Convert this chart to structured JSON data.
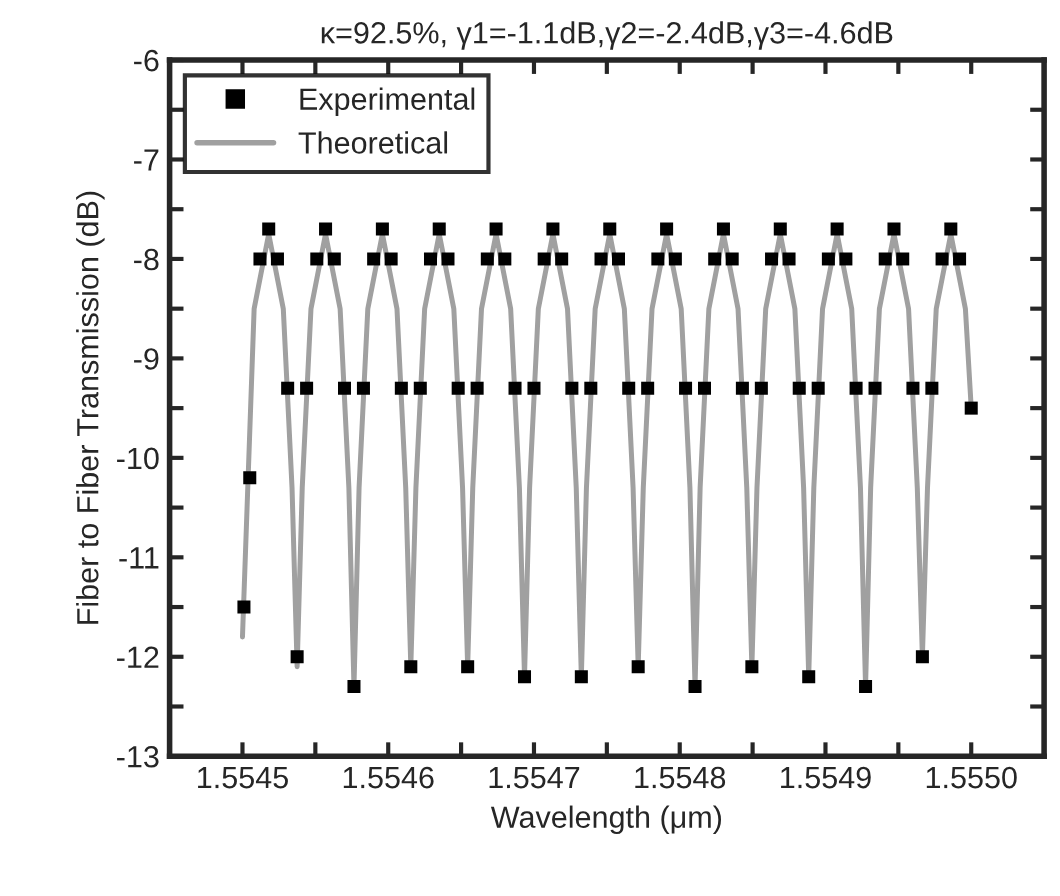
{
  "chart_data": {
    "type": "line",
    "title": "κ=92.5%, γ1=-1.1dB,γ2=-2.4dB,γ3=-4.6dB",
    "xlabel": "Wavelength (μm)",
    "ylabel": "Fiber to Fiber Transmission (dB)",
    "series": [
      {
        "name": "Experimental",
        "type": "scatter",
        "marker": "square",
        "color": "#000000",
        "x": [
          1.554501,
          1.554505,
          1.554512,
          1.554518,
          1.554524,
          1.554531,
          1.5545375,
          1.554544,
          1.554551,
          1.554557,
          1.554563,
          1.55457,
          1.5545765,
          1.554583,
          1.55459,
          1.554596,
          1.554602,
          1.554609,
          1.5546155,
          1.554622,
          1.554629,
          1.554635,
          1.554641,
          1.554648,
          1.5546545,
          1.554661,
          1.554668,
          1.554674,
          1.55468,
          1.554687,
          1.5546935,
          1.5547,
          1.554707,
          1.554713,
          1.554719,
          1.554726,
          1.5547325,
          1.554739,
          1.554746,
          1.554752,
          1.554758,
          1.554765,
          1.5547715,
          1.554778,
          1.554785,
          1.554791,
          1.554797,
          1.554804,
          1.5548105,
          1.554817,
          1.554824,
          1.55483,
          1.554836,
          1.554843,
          1.5548495,
          1.554856,
          1.554863,
          1.554869,
          1.554875,
          1.554882,
          1.5548885,
          1.554895,
          1.554902,
          1.554908,
          1.554914,
          1.554921,
          1.5549275,
          1.554934,
          1.554941,
          1.554947,
          1.554953,
          1.55496,
          1.5549665,
          1.554973,
          1.55498,
          1.554986,
          1.554992,
          1.555
        ],
        "values": [
          -11.5,
          -10.2,
          -8.0,
          -7.7,
          -8.0,
          -9.3,
          -12.0,
          -9.3,
          -8.0,
          -7.7,
          -8.0,
          -9.3,
          -12.3,
          -9.3,
          -8.0,
          -7.7,
          -8.0,
          -9.3,
          -12.1,
          -9.3,
          -8.0,
          -7.7,
          -8.0,
          -9.3,
          -12.1,
          -9.3,
          -8.0,
          -7.7,
          -8.0,
          -9.3,
          -12.2,
          -9.3,
          -8.0,
          -7.7,
          -8.0,
          -9.3,
          -12.2,
          -9.3,
          -8.0,
          -7.7,
          -8.0,
          -9.3,
          -12.1,
          -9.3,
          -8.0,
          -7.7,
          -8.0,
          -9.3,
          -12.3,
          -9.3,
          -8.0,
          -7.7,
          -8.0,
          -9.3,
          -12.1,
          -9.3,
          -8.0,
          -7.7,
          -8.0,
          -9.3,
          -12.2,
          -9.3,
          -8.0,
          -7.7,
          -8.0,
          -9.3,
          -12.3,
          -9.3,
          -8.0,
          -7.7,
          -8.0,
          -9.3,
          -12.0,
          -9.3,
          -8.0,
          -7.7,
          -8.0,
          -9.5
        ]
      },
      {
        "name": "Theoretical",
        "marker": "none",
        "line_style": "solid",
        "color": "#a0a0a0",
        "x": [
          1.5545,
          1.554508,
          1.554518,
          1.554528,
          1.554534,
          1.5545375,
          1.554541,
          1.554547,
          1.554557,
          1.554567,
          1.554573,
          1.5545765,
          1.55458,
          1.554586,
          1.554596,
          1.554606,
          1.554612,
          1.5546155,
          1.554619,
          1.554625,
          1.554635,
          1.554645,
          1.554651,
          1.5546545,
          1.554658,
          1.554664,
          1.554674,
          1.554684,
          1.55469,
          1.5546935,
          1.554697,
          1.554703,
          1.554713,
          1.554723,
          1.554729,
          1.5547325,
          1.554736,
          1.554742,
          1.554752,
          1.554762,
          1.554768,
          1.5547715,
          1.554775,
          1.554781,
          1.554791,
          1.554801,
          1.554807,
          1.5548105,
          1.554814,
          1.55482,
          1.55483,
          1.55484,
          1.554846,
          1.5548495,
          1.554853,
          1.554859,
          1.554869,
          1.554879,
          1.554885,
          1.5548885,
          1.554892,
          1.554898,
          1.554908,
          1.554918,
          1.554924,
          1.5549275,
          1.554931,
          1.554937,
          1.554947,
          1.554957,
          1.554963,
          1.5549665,
          1.55497,
          1.554976,
          1.554986,
          1.554996,
          1.555
        ],
        "values": [
          -11.8,
          -8.5,
          -7.75,
          -8.5,
          -10.3,
          -12.1,
          -10.3,
          -8.5,
          -7.75,
          -8.5,
          -10.3,
          -12.3,
          -10.3,
          -8.5,
          -7.75,
          -8.5,
          -10.3,
          -12.1,
          -10.3,
          -8.5,
          -7.75,
          -8.5,
          -10.3,
          -12.1,
          -10.3,
          -8.5,
          -7.75,
          -8.5,
          -10.3,
          -12.2,
          -10.3,
          -8.5,
          -7.75,
          -8.5,
          -10.3,
          -12.2,
          -10.3,
          -8.5,
          -7.75,
          -8.5,
          -10.3,
          -12.1,
          -10.3,
          -8.5,
          -7.75,
          -8.5,
          -10.3,
          -12.3,
          -10.3,
          -8.5,
          -7.75,
          -8.5,
          -10.3,
          -12.1,
          -10.3,
          -8.5,
          -7.75,
          -8.5,
          -10.3,
          -12.2,
          -10.3,
          -8.5,
          -7.75,
          -8.5,
          -10.3,
          -12.3,
          -10.3,
          -8.5,
          -7.75,
          -8.5,
          -10.3,
          -12.0,
          -10.3,
          -8.5,
          -7.75,
          -8.5,
          -9.5
        ]
      }
    ],
    "xlim": [
      1.55445,
      1.55505
    ],
    "xticks": [
      {
        "value": 1.5545,
        "label": "1.5545"
      },
      {
        "value": 1.55455,
        "label": null
      },
      {
        "value": 1.5546,
        "label": "1.5546"
      },
      {
        "value": 1.55465,
        "label": null
      },
      {
        "value": 1.5547,
        "label": "1.5547"
      },
      {
        "value": 1.55475,
        "label": null
      },
      {
        "value": 1.5548,
        "label": "1.5548"
      },
      {
        "value": 1.55485,
        "label": null
      },
      {
        "value": 1.5549,
        "label": "1.5549"
      },
      {
        "value": 1.55495,
        "label": null
      },
      {
        "value": 1.555,
        "label": "1.5550"
      }
    ],
    "ylim": [
      -13,
      -6
    ],
    "yticks": [
      -13,
      {
        "value": -12.5,
        "label": null
      },
      -12,
      {
        "value": -11.5,
        "label": null
      },
      -11,
      {
        "value": -10.5,
        "label": null
      },
      -10,
      {
        "value": -9.5,
        "label": null
      },
      -9,
      {
        "value": -8.5,
        "label": null
      },
      -8,
      {
        "value": -7.5,
        "label": null
      },
      -7,
      {
        "value": -6.5,
        "label": null
      },
      -6
    ],
    "grid": false,
    "legend": "top left"
  }
}
